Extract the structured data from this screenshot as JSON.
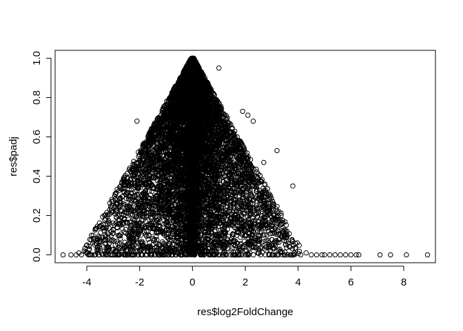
{
  "chart_data": {
    "type": "scatter",
    "title": "",
    "xlabel": "res$log2FoldChange",
    "ylabel": "res$padj",
    "xlim": [
      -5.2,
      9.2
    ],
    "ylim": [
      -0.04,
      1.04
    ],
    "x_ticks": [
      -4,
      -2,
      0,
      2,
      4,
      6,
      8
    ],
    "x_tick_labels": [
      "-4",
      "-2",
      "0",
      "2",
      "4",
      "6",
      "8"
    ],
    "y_ticks": [
      0.0,
      0.2,
      0.4,
      0.6,
      0.8,
      1.0
    ],
    "y_tick_labels": [
      "0.0",
      "0.2",
      "0.4",
      "0.6",
      "0.8",
      "1.0"
    ],
    "grid": false,
    "legend": "none",
    "marker": "open-circle",
    "color": "#000000",
    "points_x": [
      -4.9,
      -4.6,
      -4.4,
      -4.3,
      -4.2,
      -4.1,
      -4.0,
      -3.9,
      -3.8,
      -3.7,
      -3.6,
      -3.5,
      -3.4,
      -3.3,
      -3.2,
      -3.1,
      -3.0,
      -2.8,
      -2.6,
      -2.4,
      4.1,
      4.3,
      4.5,
      4.7,
      4.9,
      5.0,
      5.2,
      5.4,
      5.6,
      5.8,
      6.0,
      6.2,
      6.3,
      7.1,
      7.5,
      8.1,
      8.9,
      -2.1,
      1.9,
      2.1,
      2.3,
      2.7,
      3.2,
      3.8,
      1.0,
      1.3
    ],
    "points_y": [
      0.0,
      0.0,
      0.0,
      0.01,
      0.0,
      0.02,
      0.01,
      0.03,
      0.0,
      0.05,
      0.01,
      0.07,
      0.0,
      0.09,
      0.02,
      0.0,
      0.13,
      0.0,
      0.0,
      0.0,
      0.0,
      0.01,
      0.0,
      0.0,
      0.0,
      0.0,
      0.0,
      0.0,
      0.0,
      0.0,
      0.0,
      0.0,
      0.0,
      0.0,
      0.0,
      0.0,
      0.0,
      0.68,
      0.73,
      0.71,
      0.68,
      0.47,
      0.53,
      0.35,
      0.95,
      0.66
    ],
    "density_note_points": "bulk",
    "bulk_model": {
      "count": 9000,
      "center": 0,
      "peak_y": 1.0,
      "half_width_at_zero": 4.0
    }
  }
}
